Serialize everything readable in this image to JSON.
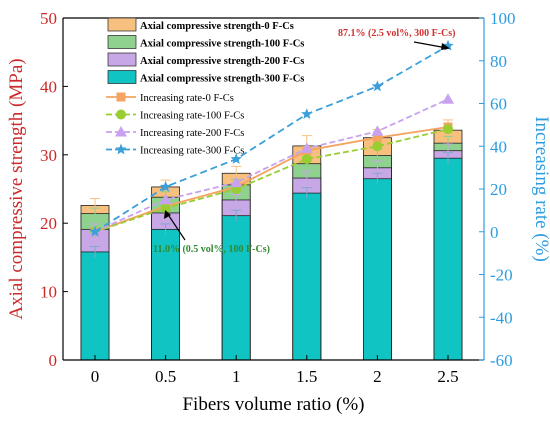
{
  "chart_data": {
    "type": "bar",
    "categories": [
      "0",
      "0.5",
      "1",
      "1.5",
      "2",
      "2.5"
    ],
    "xlabel": "Fibers volume ratio (%)",
    "ylabel_left": "Axial compressive strength (MPa)",
    "ylabel_right": "Increasing rate (%)",
    "ylim_left": [
      0,
      50
    ],
    "ylim_right": [
      -60,
      100
    ],
    "yticks_left": [
      "0",
      "10",
      "20",
      "30",
      "40",
      "50"
    ],
    "yticks_right": [
      "-60",
      "-40",
      "-20",
      "0",
      "20",
      "40",
      "60",
      "80",
      "100"
    ],
    "bar_series": [
      {
        "name": "Axial compressive strength-0 F-Cs",
        "values": [
          22.6,
          25.3,
          27.3,
          31.3,
          32.5,
          33.6
        ],
        "errors": [
          1.0,
          1.0,
          1.0,
          1.5,
          1.2,
          1.5
        ],
        "color": "#f7c07e"
      },
      {
        "name": "Axial compressive strength-100 F-Cs",
        "values": [
          21.4,
          23.8,
          25.6,
          28.7,
          29.9,
          31.7
        ],
        "errors": [
          0.8,
          0.8,
          0.8,
          1.0,
          1.0,
          1.0
        ],
        "color": "#8fd18f"
      },
      {
        "name": "Axial compressive strength-200 F-Cs",
        "values": [
          19.1,
          21.5,
          23.4,
          26.6,
          28.1,
          30.6
        ],
        "errors": [
          0.8,
          0.8,
          0.8,
          1.0,
          1.0,
          1.0
        ],
        "color": "#c8a7e6"
      },
      {
        "name": "Axial compressive strength-300 F-Cs",
        "values": [
          15.8,
          19.1,
          21.1,
          24.4,
          26.5,
          29.5
        ],
        "errors": [
          0.8,
          0.8,
          0.8,
          0.8,
          0.8,
          0.8
        ],
        "color": "#10c4c4"
      }
    ],
    "line_series": [
      {
        "name": "Increasing rate-0 F-Cs",
        "values": [
          0,
          12,
          21,
          38,
          44,
          49
        ],
        "color": "#f4a460",
        "marker": "square"
      },
      {
        "name": "Increasing rate-100 F-Cs",
        "values": [
          0,
          11,
          20,
          34,
          40,
          48
        ],
        "color": "#9acd32",
        "marker": "circle"
      },
      {
        "name": "Increasing rate-200 F-Cs",
        "values": [
          0,
          15,
          23,
          39,
          47,
          62
        ],
        "color": "#c8a2f0",
        "marker": "triangle"
      },
      {
        "name": "Increasing rate-300 F-Cs",
        "values": [
          0,
          21,
          34,
          55,
          68,
          87
        ],
        "color": "#3b9fd9",
        "marker": "star"
      }
    ],
    "annotations": [
      {
        "text": "87.1% (2.5 vol%, 300 F-Cs)",
        "color": "#d03030"
      },
      {
        "text": "11.0% (0.5 vol%, 100 F-Cs)",
        "color": "#2f8a2f"
      }
    ],
    "axis_colors": {
      "left": "#cc2a2a",
      "right": "#2e9de0"
    }
  }
}
